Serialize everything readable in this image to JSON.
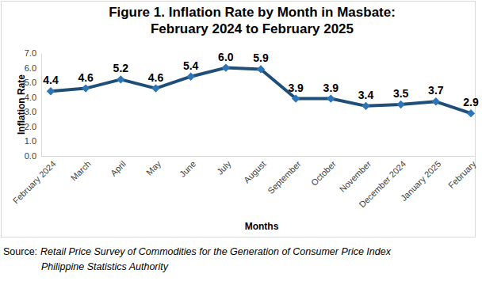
{
  "chart_data": {
    "type": "line",
    "title": [
      "Figure 1. Inflation Rate by Month in Masbate:",
      "February 2024 to February 2025"
    ],
    "x_label": "Months",
    "y_label": "Inflation Rate",
    "categories": [
      "February 2024",
      "March",
      "April",
      "May",
      "June",
      "July",
      "August",
      "September",
      "October",
      "November",
      "December 2024",
      "January 2025",
      "February"
    ],
    "values": [
      4.4,
      4.6,
      5.2,
      4.6,
      5.4,
      6.0,
      5.9,
      3.9,
      3.9,
      3.4,
      3.5,
      3.7,
      2.9
    ],
    "value_labels": [
      "4.4",
      "4.6",
      "5.2",
      "4.6",
      "5.4",
      "6.0",
      "5.9",
      "3.9",
      "3.9",
      "3.4",
      "3.5",
      "3.7",
      "2.9"
    ],
    "data_labels": true,
    "color": "#1f4e79",
    "marker": "diamond",
    "grid": false,
    "ylim": [
      0,
      7
    ],
    "yticks": [
      {
        "value": 0,
        "label": "0.0"
      },
      {
        "value": 1,
        "label": "1.0"
      },
      {
        "value": 2,
        "label": "2.0"
      },
      {
        "value": 3,
        "label": "3.0"
      },
      {
        "value": 4,
        "label": "4.0"
      },
      {
        "value": 5,
        "label": "5.0"
      },
      {
        "value": 6,
        "label": "6.0"
      },
      {
        "value": 7,
        "label": "7.0"
      }
    ],
    "source_label": "Source:",
    "source": [
      "Retail Price Survey of Commodities for the Generation of Consumer Price Index",
      "Philippine Statistics Authority"
    ]
  }
}
